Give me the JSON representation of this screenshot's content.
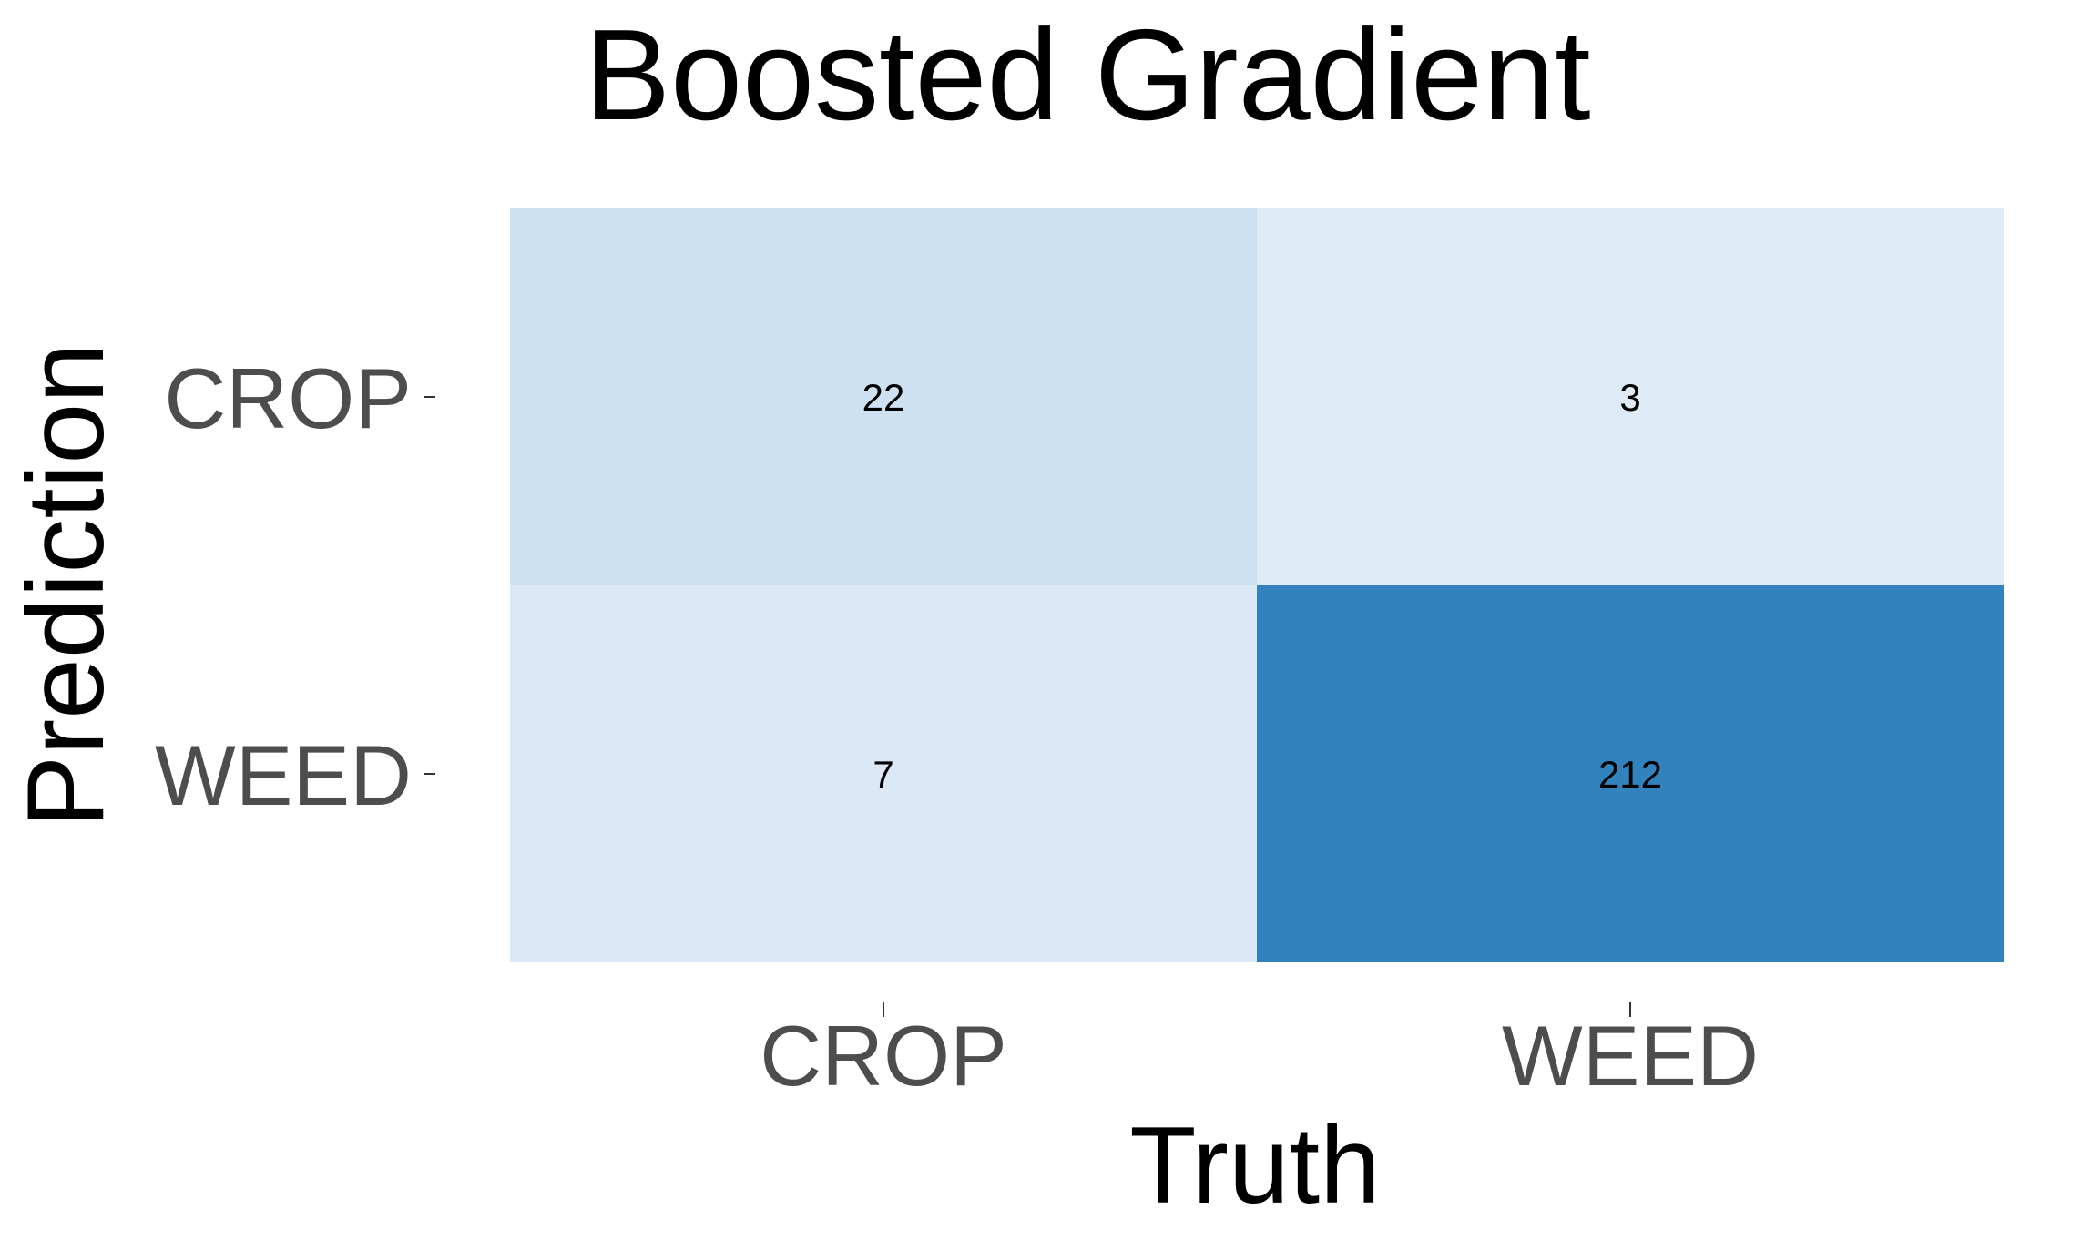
{
  "chart_data": {
    "type": "heatmap",
    "title": "Boosted Gradient",
    "xlabel": "Truth",
    "ylabel": "Prediction",
    "x_categories": [
      "CROP",
      "WEED"
    ],
    "y_categories": [
      "CROP",
      "WEED"
    ],
    "cells": [
      {
        "prediction": "CROP",
        "truth": "CROP",
        "value": 22,
        "label": "22"
      },
      {
        "prediction": "CROP",
        "truth": "WEED",
        "value": 3,
        "label": "3"
      },
      {
        "prediction": "WEED",
        "truth": "CROP",
        "value": 7,
        "label": "7"
      },
      {
        "prediction": "WEED",
        "truth": "WEED",
        "value": 212,
        "label": "212"
      }
    ],
    "color_scale": {
      "low": "#deebf7",
      "high": "#3182bd"
    },
    "legend": "none",
    "grid": false
  }
}
